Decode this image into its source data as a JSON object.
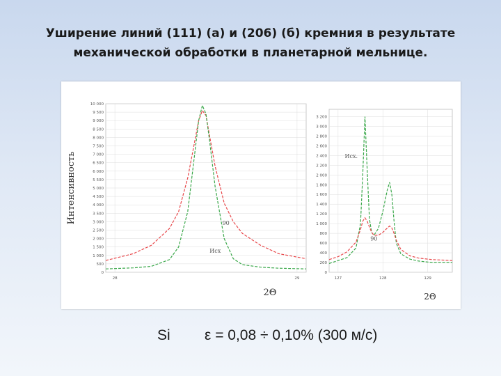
{
  "slide": {
    "title_line1": "Уширение линий (111) (а) и (206) (б) кремния в результате",
    "title_line2": "механической обработки в планетарной мельнице.",
    "footer_element": "Si",
    "footer_formula": "ε = 0,08 ÷ 0,10%  (300 м/с)"
  },
  "colors": {
    "red_series": "#e8474a",
    "green_series": "#3aa84a",
    "grid": "#dcdcdc"
  },
  "chart_data": [
    {
      "type": "line",
      "ylabel": "Интенсивность",
      "xlabel": "2Θ",
      "y_ticks": [
        "0",
        "500",
        "1 000",
        "1 500",
        "2 000",
        "2 500",
        "3 000",
        "3 500",
        "4 000",
        "4 500",
        "5 000",
        "5 500",
        "6 000",
        "6 500",
        "7 000",
        "7 500",
        "8 000",
        "8 500",
        "9 000",
        "9 500",
        "10 000"
      ],
      "x_ticks": [
        "28",
        "29"
      ],
      "xlim": [
        27.95,
        29.05
      ],
      "ylim": [
        0,
        10000
      ],
      "grid": true,
      "series": [
        {
          "name": "90",
          "color": "#e8474a",
          "x": [
            27.95,
            28.1,
            28.2,
            28.3,
            28.35,
            28.4,
            28.43,
            28.46,
            28.48,
            28.5,
            28.52,
            28.55,
            28.6,
            28.65,
            28.7,
            28.8,
            28.9,
            29.05
          ],
          "y": [
            700,
            1100,
            1600,
            2600,
            3600,
            5600,
            7300,
            9000,
            9600,
            9300,
            8100,
            6300,
            4100,
            3000,
            2300,
            1600,
            1100,
            800
          ]
        },
        {
          "name": "Исх",
          "color": "#3aa84a",
          "x": [
            27.95,
            28.1,
            28.2,
            28.3,
            28.35,
            28.4,
            28.43,
            28.46,
            28.48,
            28.5,
            28.52,
            28.55,
            28.6,
            28.65,
            28.7,
            28.8,
            28.9,
            29.05
          ],
          "y": [
            200,
            260,
            350,
            750,
            1500,
            3600,
            6300,
            9000,
            9900,
            9400,
            7800,
            5100,
            2000,
            800,
            450,
            300,
            240,
            200
          ]
        }
      ],
      "annotations": [
        {
          "text": "90",
          "x": 28.59,
          "y": 2800
        },
        {
          "text": "Исх",
          "x": 28.52,
          "y": 1150
        }
      ]
    },
    {
      "type": "line",
      "xlabel": "2Θ",
      "y_ticks": [
        "0",
        "200",
        "400",
        "600",
        "800",
        "1 000",
        "1 200",
        "1 400",
        "1 600",
        "1 800",
        "2 000",
        "2 200",
        "2 400",
        "2 600",
        "2 800",
        "3 000",
        "3 200"
      ],
      "x_ticks": [
        "127",
        "128",
        "129"
      ],
      "xlim": [
        126.8,
        129.55
      ],
      "ylim": [
        0,
        3350
      ],
      "grid": true,
      "series": [
        {
          "name": "Исх.",
          "color": "#3aa84a",
          "x": [
            126.8,
            127.0,
            127.2,
            127.4,
            127.5,
            127.55,
            127.6,
            127.65,
            127.7,
            127.75,
            127.8,
            127.9,
            128.0,
            128.1,
            128.15,
            128.2,
            128.25,
            128.3,
            128.4,
            128.6,
            128.8,
            129.1,
            129.55
          ],
          "y": [
            180,
            240,
            300,
            500,
            1000,
            2000,
            3200,
            2100,
            1100,
            820,
            760,
            900,
            1250,
            1700,
            1850,
            1600,
            1050,
            600,
            380,
            270,
            230,
            200,
            200
          ]
        },
        {
          "name": "90",
          "color": "#e8474a",
          "x": [
            126.8,
            127.0,
            127.2,
            127.4,
            127.5,
            127.55,
            127.6,
            127.65,
            127.7,
            127.75,
            127.8,
            127.9,
            128.0,
            128.1,
            128.15,
            128.2,
            128.25,
            128.3,
            128.4,
            128.6,
            128.8,
            129.1,
            129.55
          ],
          "y": [
            260,
            320,
            420,
            620,
            880,
            1050,
            1120,
            1050,
            930,
            820,
            760,
            760,
            820,
            910,
            950,
            910,
            800,
            660,
            470,
            340,
            290,
            260,
            240
          ]
        }
      ],
      "annotations": [
        {
          "text": "Исх.",
          "x": 127.15,
          "y": 2350
        },
        {
          "text": "90",
          "x": 127.72,
          "y": 650
        }
      ]
    }
  ]
}
